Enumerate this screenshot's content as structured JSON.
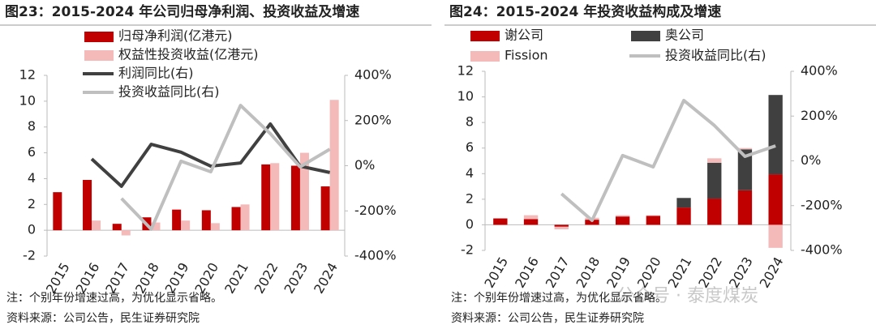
{
  "chart_data": [
    {
      "type": "combo",
      "title": "图23：2015-2024 年公司归母净利润、投资收益及增速",
      "stacked": false,
      "categories": [
        "2015",
        "2016",
        "2017",
        "2018",
        "2019",
        "2020",
        "2021",
        "2022",
        "2023",
        "2024"
      ],
      "series": [
        {
          "name": "归母净利润(亿港元)",
          "type": "bar",
          "color": "#c00000",
          "values": [
            2.95,
            3.9,
            0.5,
            1.0,
            1.6,
            1.55,
            1.8,
            5.1,
            5.0,
            3.4
          ]
        },
        {
          "name": "权益性投资收益(亿港元)",
          "type": "bar",
          "color": "#f4b9b9",
          "values": [
            null,
            0.75,
            -0.4,
            0.6,
            0.75,
            0.55,
            2.0,
            5.2,
            6.0,
            10.1
          ]
        },
        {
          "name": "利润同比(右)",
          "type": "line",
          "axis": "y2",
          "color": "#404040",
          "values": [
            null,
            30,
            -91,
            95,
            60,
            -2,
            12,
            185,
            -2,
            -30
          ]
        },
        {
          "name": "投资收益同比(右)",
          "type": "line",
          "axis": "y2",
          "color": "#bfbfbf",
          "values": [
            null,
            null,
            -145,
            -281,
            20,
            -27,
            267,
            142,
            -5,
            73
          ]
        }
      ],
      "ylim": [
        -2,
        12
      ],
      "yticks": [
        -2,
        0,
        2,
        4,
        6,
        8,
        10,
        12
      ],
      "y2lim": [
        -400,
        400
      ],
      "y2ticks": [
        {
          "value": -400,
          "label": "-400%"
        },
        {
          "value": -200,
          "label": "-200%"
        },
        {
          "value": 0,
          "label": "0%"
        },
        {
          "value": 200,
          "label": "200%"
        },
        {
          "value": 400,
          "label": "400%"
        }
      ],
      "notes": [
        "注：个别年份增速过高，为优化显示省略。",
        "资料来源：公司公告，民生证券研究院"
      ]
    },
    {
      "type": "combo",
      "title": "图24：2015-2024 年投资收益构成及增速",
      "stacked": true,
      "categories": [
        "2015",
        "2016",
        "2017",
        "2018",
        "2019",
        "2020",
        "2021",
        "2022",
        "2023",
        "2024"
      ],
      "series": [
        {
          "name": "谢公司",
          "type": "bar",
          "color": "#c00000",
          "values": [
            0.5,
            0.45,
            -0.15,
            0.4,
            0.65,
            0.7,
            1.35,
            2.05,
            2.7,
            3.95
          ]
        },
        {
          "name": "奥公司",
          "type": "bar",
          "color": "#404040",
          "values": [
            null,
            null,
            null,
            null,
            null,
            null,
            0.75,
            2.8,
            3.2,
            6.2
          ]
        },
        {
          "name": "Fission",
          "type": "bar",
          "color": "#f4b9b9",
          "values": [
            null,
            0.3,
            -0.2,
            0.15,
            0.1,
            0.05,
            null,
            0.35,
            0.1,
            -1.8
          ]
        },
        {
          "name": "投资收益同比(右)",
          "type": "line",
          "axis": "y2",
          "color": "#bfbfbf",
          "values": [
            null,
            null,
            -147,
            -266,
            24,
            -27,
            270,
            158,
            20,
            67
          ]
        }
      ],
      "ylim": [
        -2,
        12
      ],
      "yticks": [
        -2,
        0,
        2,
        4,
        6,
        8,
        10,
        12
      ],
      "y2lim": [
        -400,
        400
      ],
      "y2ticks": [
        {
          "value": -400,
          "label": "-400%"
        },
        {
          "value": -200,
          "label": "-200%"
        },
        {
          "value": 0,
          "label": "0%"
        },
        {
          "value": 200,
          "label": "200%"
        },
        {
          "value": 400,
          "label": "400%"
        }
      ],
      "notes": [
        "注：个别年份增速过高，为优化显示省略。",
        "资料来源：公司公告，民生证券研究院"
      ]
    }
  ],
  "watermark": "公众号 · 泰度煤炭"
}
